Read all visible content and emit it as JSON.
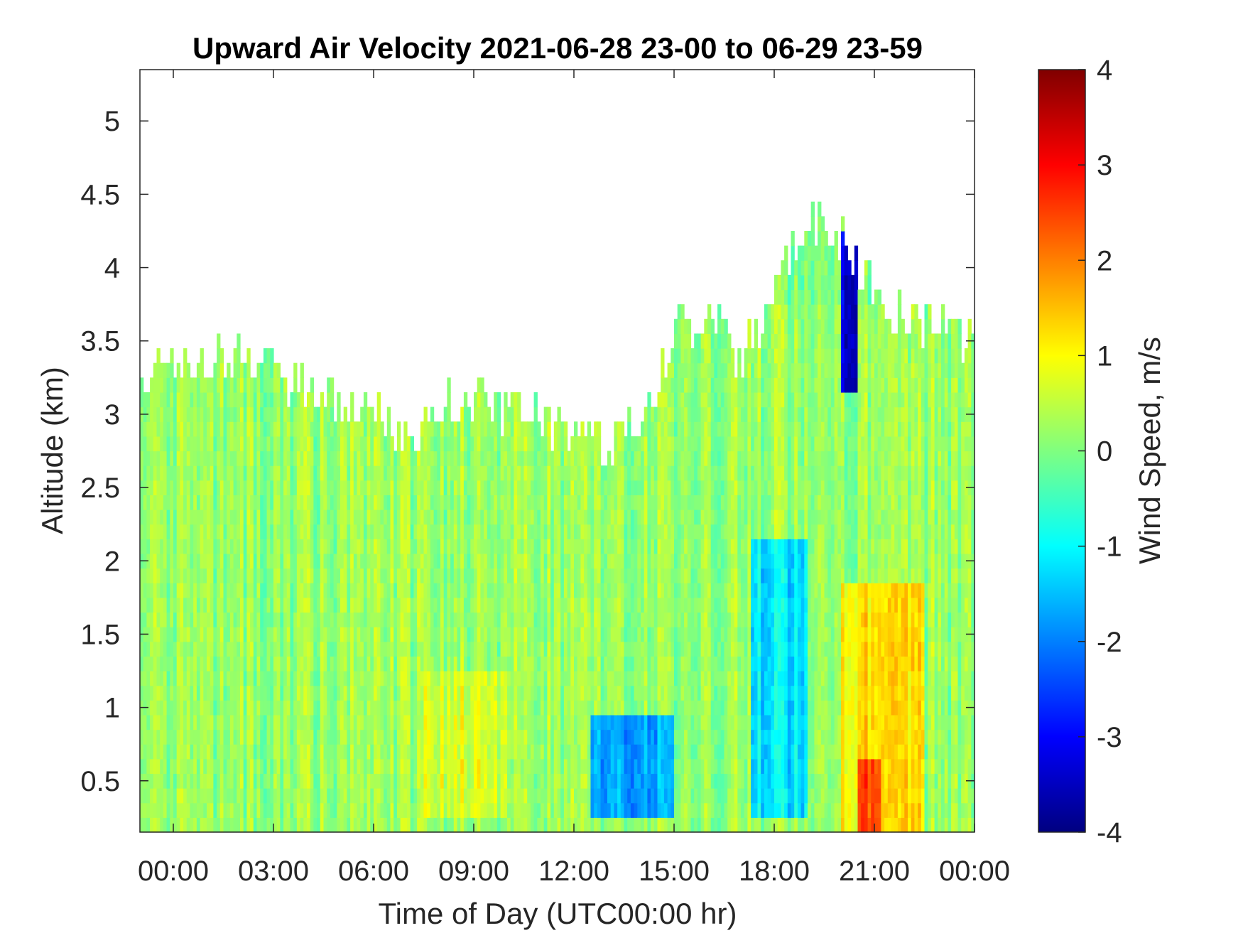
{
  "chart_data": {
    "type": "heatmap",
    "title": "Upward Air Velocity 2021-06-28 23-00 to 06-29 23-59",
    "xlabel": "Time of Day (UTC00:00 hr)",
    "ylabel": "Altitude (km)",
    "x_tick_labels": [
      "00:00",
      "03:00",
      "06:00",
      "09:00",
      "12:00",
      "15:00",
      "18:00",
      "21:00",
      "00:00"
    ],
    "x_tick_hours": [
      0,
      3,
      6,
      9,
      12,
      15,
      18,
      21,
      24
    ],
    "xlim_hours": [
      -1,
      24
    ],
    "y_tick_labels": [
      "0.5",
      "1",
      "1.5",
      "2",
      "2.5",
      "3",
      "3.5",
      "4",
      "4.5",
      "5"
    ],
    "y_ticks": [
      0.5,
      1,
      1.5,
      2,
      2.5,
      3,
      3.5,
      4,
      4.5,
      5
    ],
    "ylim": [
      0.15,
      5.35
    ],
    "grid": false,
    "colorbar": {
      "label": "Wind Speed, m/s",
      "ticks": [
        -4,
        -3,
        -2,
        -1,
        0,
        1,
        2,
        3,
        4
      ],
      "tick_labels": [
        "-4",
        "-3",
        "-2",
        "-1",
        "0",
        "1",
        "2",
        "3",
        "4"
      ],
      "limits": [
        -4,
        4
      ],
      "colormap": "jet"
    },
    "data_top_km": [
      [
        -1.0,
        3.15
      ],
      [
        0.0,
        3.35
      ],
      [
        1.0,
        3.3
      ],
      [
        2.0,
        3.35
      ],
      [
        3.0,
        3.3
      ],
      [
        4.0,
        3.1
      ],
      [
        5.0,
        3.0
      ],
      [
        6.0,
        3.05
      ],
      [
        7.0,
        2.7
      ],
      [
        8.0,
        3.0
      ],
      [
        9.0,
        3.05
      ],
      [
        10.0,
        3.0
      ],
      [
        11.0,
        2.95
      ],
      [
        12.0,
        2.75
      ],
      [
        13.0,
        2.75
      ],
      [
        14.0,
        2.85
      ],
      [
        15.0,
        3.5
      ],
      [
        16.0,
        3.65
      ],
      [
        17.0,
        3.3
      ],
      [
        18.0,
        3.8
      ],
      [
        19.0,
        4.3
      ],
      [
        20.0,
        4.2
      ],
      [
        21.0,
        3.75
      ],
      [
        22.0,
        3.6
      ],
      [
        23.0,
        3.5
      ],
      [
        24.0,
        3.45
      ]
    ],
    "velocity_features": [
      {
        "description": "near-zero background",
        "hours": [
          -1,
          24
        ],
        "altitude_km": [
          0.15,
          3.8
        ],
        "m_s": 0.2
      },
      {
        "description": "weak updraft",
        "hours": [
          7.5,
          10
        ],
        "altitude_km": [
          0.3,
          1.2
        ],
        "m_s": 0.7
      },
      {
        "description": "downdraft",
        "hours": [
          12.5,
          15
        ],
        "altitude_km": [
          0.3,
          0.9
        ],
        "m_s": -1.7
      },
      {
        "description": "downdraft",
        "hours": [
          17.3,
          19
        ],
        "altitude_km": [
          0.3,
          2.2
        ],
        "m_s": -1.2
      },
      {
        "description": "strong downdraft",
        "hours": [
          20.0,
          20.5
        ],
        "altitude_km": [
          3.2,
          4.3
        ],
        "m_s": -3.2
      },
      {
        "description": "updraft",
        "hours": [
          20.0,
          22.5
        ],
        "altitude_km": [
          0.2,
          1.9
        ],
        "m_s": 1.2
      },
      {
        "description": "strong updraft",
        "hours": [
          20.5,
          21.2
        ],
        "altitude_km": [
          0.15,
          0.6
        ],
        "m_s": 2.4
      }
    ]
  }
}
